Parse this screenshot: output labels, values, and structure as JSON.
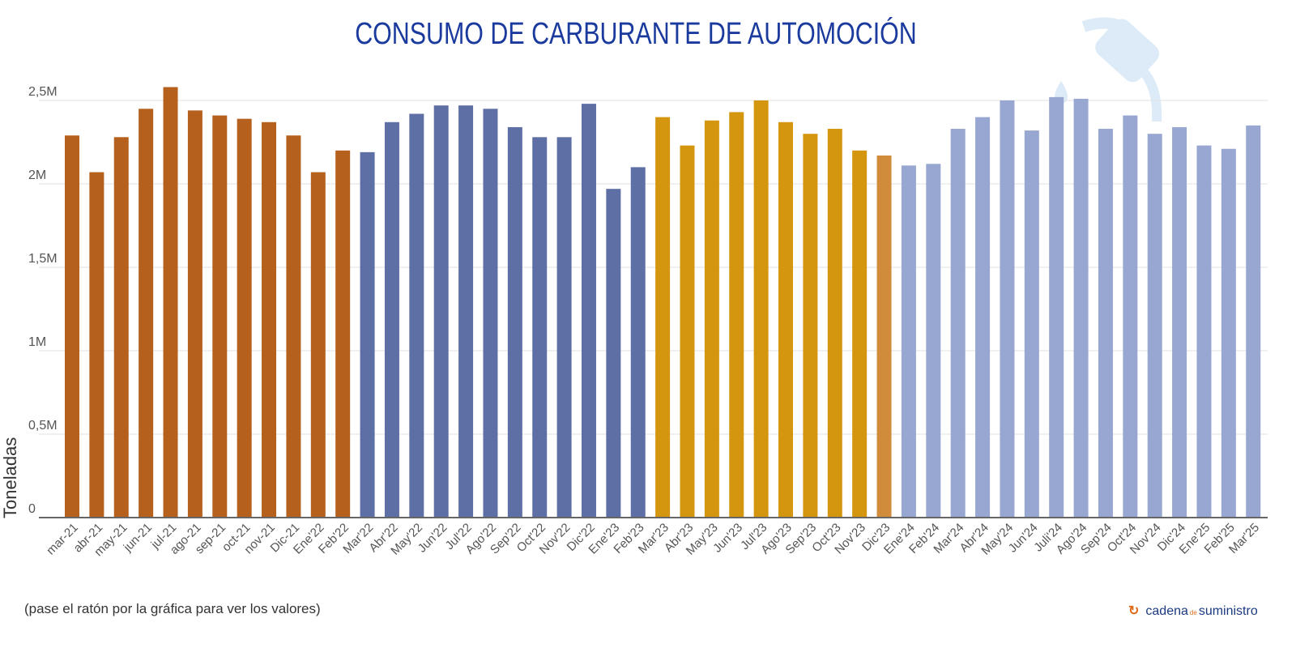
{
  "chart_data": {
    "type": "bar",
    "title": "CONSUMO DE CARBURANTE DE AUTOMOCIÓN",
    "ylabel": "Toneladas",
    "xlabel": "",
    "ylim": [
      0,
      2500000
    ],
    "yticks": [
      0,
      500000,
      1000000,
      1500000,
      2000000,
      2500000
    ],
    "ytick_labels": [
      "0",
      "0,5M",
      "1M",
      "1,5M",
      "2M",
      "2,5M"
    ],
    "grid": true,
    "categories": [
      "mar-21",
      "abr-21",
      "may-21",
      "jun-21",
      "jul-21",
      "ago-21",
      "sep-21",
      "oct-21",
      "nov-21",
      "Dic-21",
      "Ene'22",
      "Feb'22",
      "Mar'22",
      "Abr'22",
      "May'22",
      "Jun'22",
      "Jul'22",
      "Ago'22",
      "Sep'22",
      "Oct'22",
      "Nov'22",
      "Dic'22",
      "Ene'23",
      "Feb'23",
      "Mar'23",
      "Abr'23",
      "May'23",
      "Jun'23",
      "Jul'23",
      "Ago'23",
      "Sep'23",
      "Oct'23",
      "Nov'23",
      "Dic'23",
      "Ene'24",
      "Feb'24",
      "Mar'24",
      "Abr'24",
      "May'24",
      "Jun'24",
      "Juli'24",
      "Ago'24",
      "Sep'24",
      "Oct'24",
      "Nov'24",
      "Dic'24",
      "Ene'25",
      "Feb'25",
      "Mar'25"
    ],
    "values": [
      2290000,
      2070000,
      2280000,
      2450000,
      2580000,
      2440000,
      2410000,
      2390000,
      2370000,
      2290000,
      2070000,
      2200000,
      2190000,
      2370000,
      2420000,
      2470000,
      2470000,
      2450000,
      2340000,
      2280000,
      2280000,
      2480000,
      1970000,
      2100000,
      2400000,
      2230000,
      2380000,
      2430000,
      2500000,
      2370000,
      2300000,
      2330000,
      2200000,
      2170000,
      2110000,
      2120000,
      2330000,
      2400000,
      2500000,
      2320000,
      2520000,
      2510000,
      2330000,
      2410000,
      2300000,
      2340000,
      2230000,
      2210000,
      2350000
    ],
    "colors": [
      "#b5601c",
      "#b5601c",
      "#b5601c",
      "#b5601c",
      "#b5601c",
      "#b5601c",
      "#b5601c",
      "#b5601c",
      "#b5601c",
      "#b5601c",
      "#b5601c",
      "#b5601c",
      "#5e6fa6",
      "#5e6fa6",
      "#5e6fa6",
      "#5e6fa6",
      "#5e6fa6",
      "#5e6fa6",
      "#5e6fa6",
      "#5e6fa6",
      "#5e6fa6",
      "#5e6fa6",
      "#5e6fa6",
      "#5e6fa6",
      "#d4960f",
      "#d4960f",
      "#d4960f",
      "#d4960f",
      "#d4960f",
      "#d4960f",
      "#d4960f",
      "#d4960f",
      "#d4960f",
      "#d08c3a",
      "#98a7d1",
      "#98a7d1",
      "#98a7d1",
      "#98a7d1",
      "#98a7d1",
      "#98a7d1",
      "#98a7d1",
      "#98a7d1",
      "#98a7d1",
      "#98a7d1",
      "#98a7d1",
      "#98a7d1",
      "#98a7d1",
      "#98a7d1",
      "#98a7d1"
    ]
  },
  "footer": {
    "hint": "(pase el ratón por la gráfica para ver los valores)",
    "logo": {
      "name": "cadena",
      "de": "de",
      "suffix": "suministro"
    }
  },
  "icons": {
    "decoration": "fuel-pump-nozzle-icon"
  }
}
